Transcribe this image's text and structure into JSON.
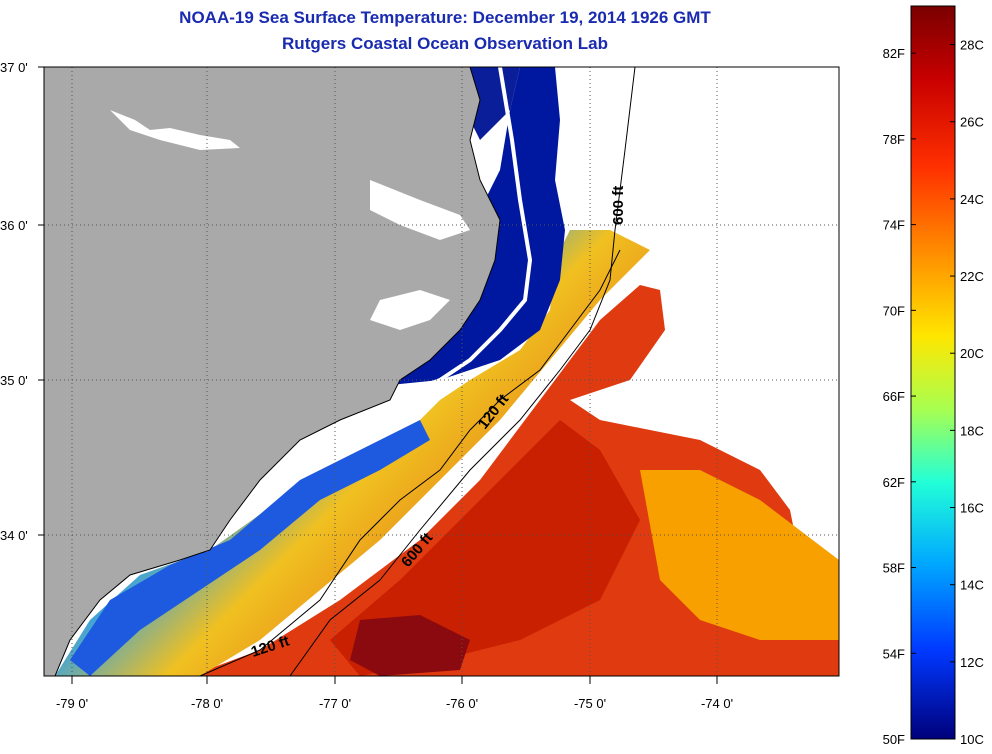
{
  "header": {
    "title": "NOAA-19 Sea Surface Temperature:  December 19, 2014 1926 GMT",
    "subtitle": "Rutgers Coastal Ocean Observation Lab"
  },
  "map": {
    "lat_labels": [
      "37 0'",
      "36 0'",
      "35 0'",
      "34 0'"
    ],
    "lon_labels": [
      "-79 0'",
      "-78 0'",
      "-77 0'",
      "-76 0'",
      "-75 0'",
      "-74 0'"
    ],
    "isobaths": [
      {
        "label": "120 ft"
      },
      {
        "label": "120 ft"
      },
      {
        "label": "600 ft"
      },
      {
        "label": "600 ft"
      }
    ],
    "colors": {
      "land": "#a9a9a9",
      "cloud": "#ffffff",
      "cold": "#00008f",
      "warm": "#d61b00",
      "title": "#1a2bb0"
    }
  },
  "colorbar": {
    "fahrenheit": [
      "82F",
      "78F",
      "74F",
      "70F",
      "66F",
      "62F",
      "58F",
      "54F",
      "50F"
    ],
    "celsius": [
      "28C",
      "26C",
      "24C",
      "22C",
      "20C",
      "18C",
      "16C",
      "14C",
      "12C",
      "10C"
    ],
    "min_c": 10,
    "max_c": 29
  }
}
